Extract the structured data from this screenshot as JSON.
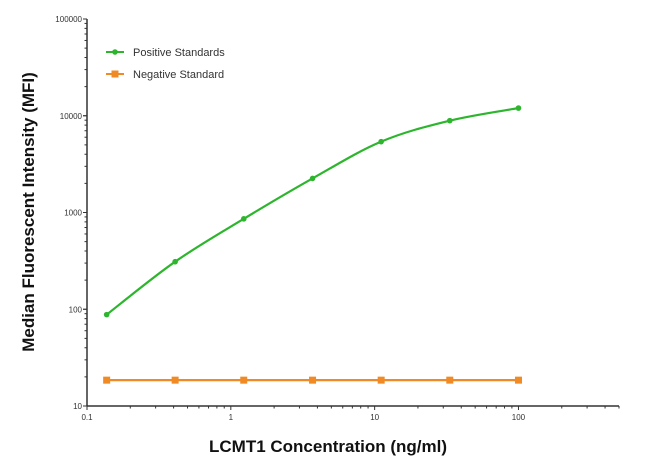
{
  "chart_data": {
    "type": "line",
    "title": "",
    "xlabel": "LCMT1 Concentration (ng/ml)",
    "ylabel": "Median  Fluorescent Intensity  (MFI)",
    "x_scale": "log",
    "y_scale": "log",
    "xlim": [
      0.1,
      500
    ],
    "ylim": [
      10,
      100000
    ],
    "x_ticks": [
      "0.1",
      "1",
      "10",
      "100"
    ],
    "y_ticks": [
      "10",
      "100",
      "1000",
      "10000",
      "100000"
    ],
    "grid": false,
    "legend_position": "top-left",
    "x": [
      0.137,
      0.41,
      1.23,
      3.7,
      11.1,
      33.3,
      100
    ],
    "series": [
      {
        "name": "Positive Standards",
        "color": "#2db52d",
        "marker": "circle",
        "smooth": true,
        "values": [
          88,
          310,
          860,
          2250,
          5400,
          8900,
          12000
        ]
      },
      {
        "name": "Negative Standard",
        "color": "#f08a24",
        "marker": "square",
        "smooth": false,
        "values": [
          18.5,
          18.5,
          18.5,
          18.5,
          18.5,
          18.5,
          18.5
        ]
      }
    ]
  }
}
